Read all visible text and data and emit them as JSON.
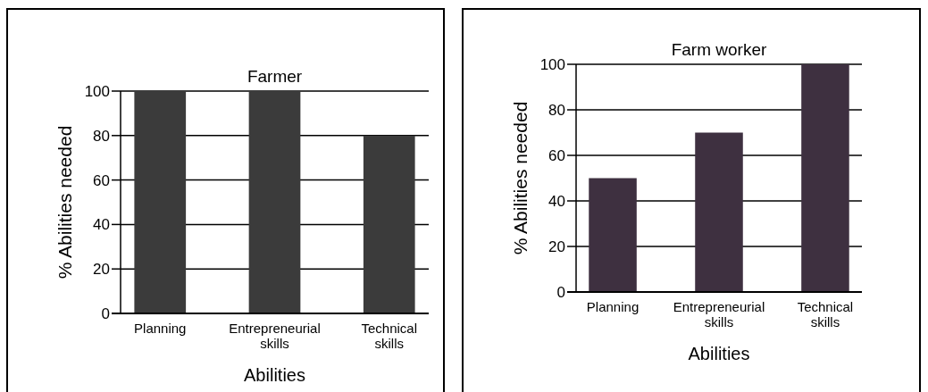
{
  "chart_data": [
    {
      "type": "bar",
      "title": "Farmer",
      "xlabel": "Abilities",
      "ylabel": "% Abilities needed",
      "categories": [
        "Planning",
        "Entrepreneurial skills",
        "Technical skills"
      ],
      "values": [
        100,
        100,
        80
      ],
      "color": "#3b3b3b",
      "ylim": [
        0,
        100
      ],
      "yticks": [
        0,
        20,
        40,
        60,
        80,
        100
      ],
      "grid": "y"
    },
    {
      "type": "bar",
      "title": "Farm worker",
      "xlabel": "Abilities",
      "ylabel": "% Abilities needed",
      "categories": [
        "Planning",
        "Entrepreneurial skills",
        "Technical skills"
      ],
      "values": [
        50,
        70,
        100
      ],
      "color": "#3e3040",
      "ylim": [
        0,
        100
      ],
      "yticks": [
        0,
        20,
        40,
        60,
        80,
        100
      ],
      "grid": "y"
    }
  ]
}
